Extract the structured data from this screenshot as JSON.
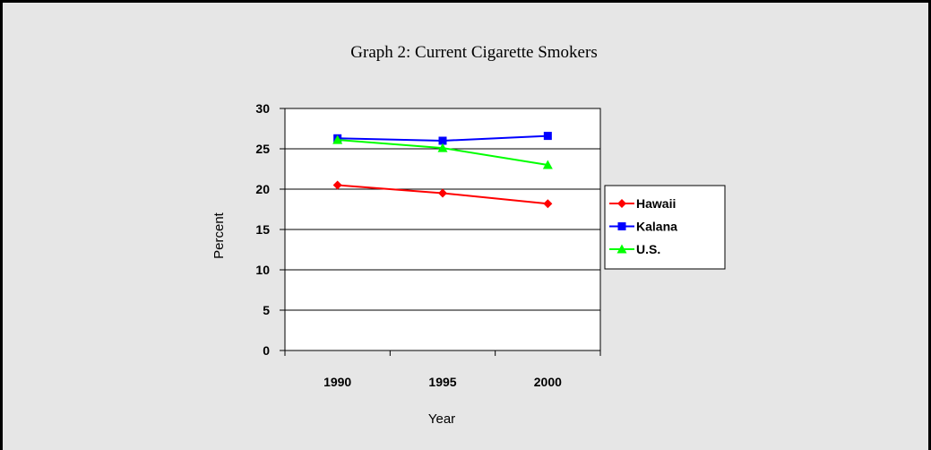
{
  "chart_data": {
    "type": "line",
    "title": "Graph 2:  Current Cigarette Smokers",
    "xlabel": "Year",
    "ylabel": "Percent",
    "categories": [
      "1990",
      "1995",
      "2000"
    ],
    "ylim": [
      0,
      30
    ],
    "yticks": [
      0,
      5,
      10,
      15,
      20,
      25,
      30
    ],
    "grid": true,
    "legend_position": "right",
    "series": [
      {
        "name": "Hawaii",
        "values": [
          20.5,
          19.5,
          18.2
        ],
        "color": "#ff0000",
        "marker": "diamond"
      },
      {
        "name": "Kalana",
        "values": [
          26.3,
          26.0,
          26.6
        ],
        "color": "#0000ff",
        "marker": "square"
      },
      {
        "name": "U.S.",
        "values": [
          26.1,
          25.1,
          23.0
        ],
        "color": "#00ff00",
        "marker": "triangle"
      }
    ]
  }
}
